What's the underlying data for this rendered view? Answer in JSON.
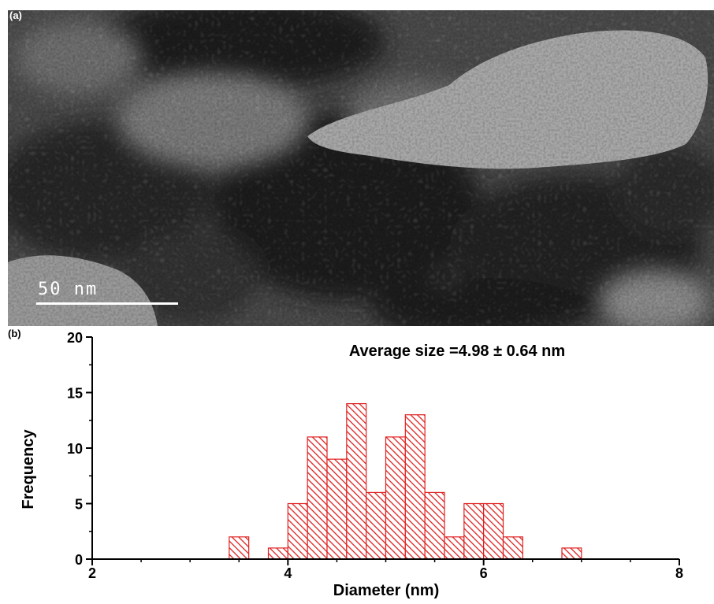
{
  "panel_a": {
    "label": "(a)",
    "scale_bar_text": "50 nm"
  },
  "panel_b": {
    "label": "(b)"
  },
  "colors": {
    "bar_fill": "#ffffff",
    "bar_stroke": "#e02020",
    "hatch": "#e02020",
    "axis": "#000000"
  },
  "chart_data": {
    "type": "bar",
    "title": "",
    "annotation": "Average size =4.98 ± 0.64 nm",
    "xlabel": "Diameter (nm)",
    "ylabel": "Frequency",
    "xlim": [
      2,
      8
    ],
    "ylim": [
      0,
      20
    ],
    "x_ticks": [
      2,
      4,
      6,
      8
    ],
    "y_ticks": [
      0,
      5,
      10,
      15,
      20
    ],
    "bin_width": 0.2,
    "bin_centers": [
      3.5,
      3.9,
      4.1,
      4.3,
      4.5,
      4.7,
      4.9,
      5.1,
      5.3,
      5.5,
      5.7,
      5.9,
      6.1,
      6.3,
      6.9
    ],
    "values": [
      2,
      1,
      5,
      11,
      9,
      14,
      6,
      11,
      13,
      6,
      2,
      5,
      5,
      2,
      1
    ],
    "grid": false
  }
}
